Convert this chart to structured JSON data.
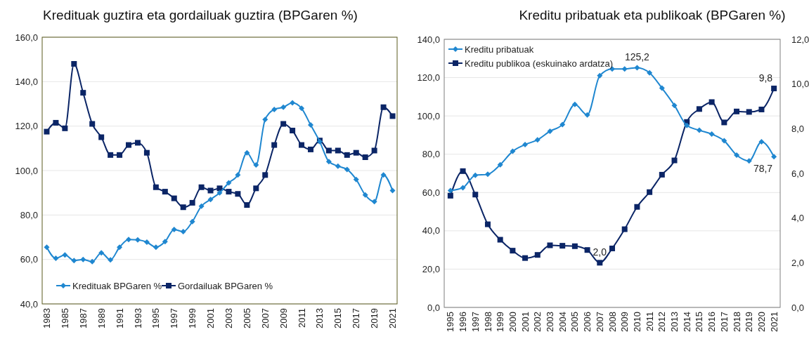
{
  "chart_data": [
    {
      "type": "line",
      "title": "Kredituak guztira eta gordailuak guztira (BPGaren %)",
      "categories": [
        "1983",
        null,
        "1985",
        null,
        "1987",
        null,
        "1989",
        null,
        "1991",
        null,
        "1993",
        null,
        "1995",
        null,
        "1997",
        null,
        "1999",
        null,
        "2001",
        null,
        "2003",
        null,
        "2005",
        null,
        "2007",
        null,
        "2009",
        null,
        "2011",
        null,
        "2013",
        null,
        "2015",
        null,
        "2017",
        null,
        "2019",
        null,
        "2021"
      ],
      "series": [
        {
          "name": "Kredituak BPGaren %",
          "color": "#1f87d0",
          "marker": "diamond",
          "values": [
            65.5,
            60.5,
            62,
            59.5,
            60,
            59,
            63,
            59.8,
            65.5,
            69,
            68.8,
            67.8,
            65.5,
            68,
            73.5,
            72.5,
            77,
            84,
            87,
            90,
            94.5,
            98,
            108,
            102.5,
            123,
            127.5,
            128.5,
            130.5,
            128,
            120.5,
            113,
            104,
            102,
            100.5,
            96,
            89,
            86,
            98,
            91
          ]
        },
        {
          "name": "Gordailuak BPGaren %",
          "color": "#0b2566",
          "marker": "square",
          "values": [
            117.5,
            121.5,
            119,
            148,
            135,
            121,
            115,
            107,
            107,
            111.5,
            112.5,
            108,
            92.5,
            90.5,
            87.5,
            83.5,
            85.5,
            92.5,
            91,
            92,
            90.5,
            89.5,
            84.5,
            92,
            98,
            111.5,
            121,
            118,
            111.5,
            109.5,
            113.5,
            109,
            109,
            107,
            108,
            106,
            109,
            128.5,
            124.5
          ]
        }
      ],
      "ylim": [
        40,
        160
      ],
      "yticks": [
        {
          "value": 40,
          "label": "40,0"
        },
        {
          "value": 60,
          "label": "60,0"
        },
        {
          "value": 80,
          "label": "80,0"
        },
        {
          "value": 100,
          "label": "100,0"
        },
        {
          "value": 120,
          "label": "120,0"
        },
        {
          "value": 140,
          "label": "140,0"
        },
        {
          "value": 160,
          "label": "160,0"
        }
      ],
      "grid": "y",
      "legend": "bottom left"
    },
    {
      "type": "line",
      "title": "Kreditu pribatuak eta publikoak (BPGaren %)",
      "categories": [
        "1995",
        "1996",
        "1997",
        "1998",
        "1999",
        "2000",
        "2001",
        "2002",
        "2003",
        "2004",
        "2005",
        "2006",
        "2007",
        "2008",
        "2009",
        "2010",
        "2011",
        "2012",
        "2013",
        "2014",
        "2015",
        "2016",
        "2017",
        "2018",
        "2019",
        "2020",
        "2021"
      ],
      "series": [
        {
          "name": "Kreditu pribatuak",
          "color": "#1f87d0",
          "marker": "diamond",
          "values": [
            61,
            62.5,
            69,
            69.5,
            74.5,
            81.5,
            85,
            87.5,
            92,
            95.5,
            106,
            100.5,
            121,
            124.5,
            124.5,
            125.2,
            122.5,
            114.5,
            105.5,
            95,
            92.5,
            90.5,
            87,
            79.5,
            76.5,
            86.5,
            78.7
          ],
          "value_labels": [
            null,
            null,
            null,
            null,
            null,
            null,
            null,
            null,
            null,
            null,
            null,
            null,
            null,
            null,
            null,
            "125,2",
            null,
            null,
            null,
            null,
            null,
            null,
            null,
            null,
            null,
            null,
            "78,7"
          ]
        },
        {
          "name": "Kreditu publikoa (eskuinako ardatza)",
          "color": "#0b2566",
          "marker": "square",
          "axis": "y2",
          "values": [
            5.0,
            6.1,
            5.05,
            3.72,
            3.03,
            2.54,
            2.21,
            2.35,
            2.78,
            2.76,
            2.74,
            2.57,
            2.0,
            2.64,
            3.5,
            4.5,
            5.16,
            5.94,
            6.58,
            8.3,
            8.88,
            9.19,
            8.28,
            8.77,
            8.75,
            8.86,
            9.8
          ],
          "value_labels": [
            null,
            null,
            null,
            null,
            null,
            null,
            null,
            null,
            null,
            null,
            null,
            null,
            "2,0",
            null,
            null,
            null,
            null,
            null,
            null,
            null,
            null,
            null,
            null,
            null,
            null,
            null,
            "9,8"
          ]
        }
      ],
      "ylim": [
        0,
        140
      ],
      "yticks": [
        {
          "value": 0,
          "label": "0,0"
        },
        {
          "value": 20,
          "label": "20,0"
        },
        {
          "value": 40,
          "label": "40,0"
        },
        {
          "value": 60,
          "label": "60,0"
        },
        {
          "value": 80,
          "label": "80,0"
        },
        {
          "value": 100,
          "label": "100,0"
        },
        {
          "value": 120,
          "label": "120,0"
        },
        {
          "value": 140,
          "label": "140,0"
        }
      ],
      "y2lim": [
        0,
        12
      ],
      "y2ticks": [
        {
          "value": 0,
          "label": "0,0"
        },
        {
          "value": 2,
          "label": "2,0"
        },
        {
          "value": 4,
          "label": "4,0"
        },
        {
          "value": 6,
          "label": "6,0"
        },
        {
          "value": 8,
          "label": "8,0"
        },
        {
          "value": 10,
          "label": "10,0"
        },
        {
          "value": 12,
          "label": "12,0"
        }
      ],
      "grid": "y",
      "legend": "top left"
    }
  ]
}
